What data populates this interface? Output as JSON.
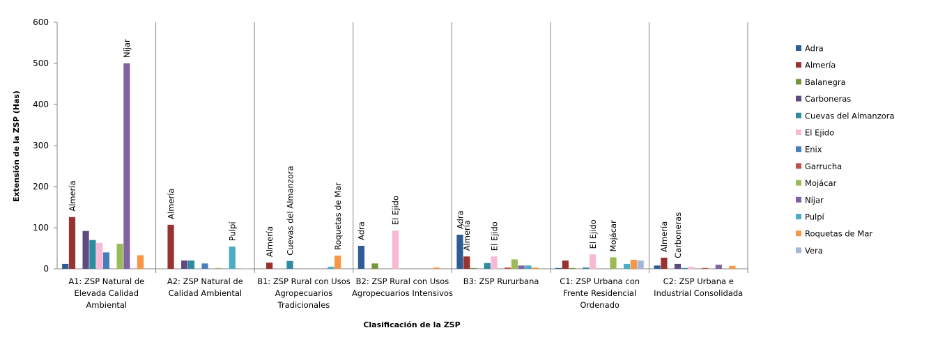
{
  "chart_data": {
    "type": "bar",
    "title": "",
    "xlabel": "Clasificación  de la ZSP",
    "ylabel": "Extensión de la ZSP (Has)",
    "ylim": [
      0,
      600
    ],
    "yticks": [
      0,
      100,
      200,
      300,
      400,
      500,
      600
    ],
    "grid": false,
    "legend_position": "right",
    "categories": [
      [
        "A1: ZSP Natural de",
        "Elevada Calidad",
        "Ambiental"
      ],
      [
        "A2: ZSP Natural de",
        "Calidad Ambiental"
      ],
      [
        "B1: ZSP Rural con Usos",
        "Agropecuarios",
        "Tradicionales"
      ],
      [
        "B2: ZSP Rural con Usos",
        "Agropecuarios Intensivos"
      ],
      [
        "B3: ZSP Rururbana"
      ],
      [
        "C1: ZSP Urbana con",
        "Frente  Residencial",
        "Ordenado"
      ],
      [
        "C2: ZSP Urbana e",
        "Industrial Consolidada"
      ]
    ],
    "series": [
      {
        "name": "Adra",
        "color": "#2e5d96",
        "values": [
          12,
          0,
          0,
          56,
          83,
          2,
          8
        ]
      },
      {
        "name": "Almería",
        "color": "#983330",
        "values": [
          126,
          107,
          15,
          0,
          30,
          20,
          27
        ]
      },
      {
        "name": "Balanegra",
        "color": "#77943c",
        "values": [
          0,
          0,
          0,
          13,
          2,
          2,
          0
        ]
      },
      {
        "name": "Carboneras",
        "color": "#5f4a80",
        "values": [
          92,
          20,
          0,
          0,
          0,
          0,
          12
        ]
      },
      {
        "name": "Cuevas del Almanzora",
        "color": "#2e8a9e",
        "values": [
          70,
          20,
          19,
          0,
          14,
          3,
          2
        ]
      },
      {
        "name": "El Ejido",
        "color": "#f9b9d4",
        "values": [
          63,
          0,
          0,
          93,
          30,
          35,
          5
        ]
      },
      {
        "name": "Enix",
        "color": "#4a7ebb",
        "values": [
          40,
          13,
          0,
          0,
          0,
          0,
          0
        ]
      },
      {
        "name": "Garrucha",
        "color": "#c0504d",
        "values": [
          0,
          0,
          0,
          0,
          3,
          0,
          2
        ]
      },
      {
        "name": "Mojácar",
        "color": "#9bbb59",
        "values": [
          61,
          2,
          0,
          0,
          23,
          28,
          0
        ]
      },
      {
        "name": "Níjar",
        "color": "#8064a2",
        "values": [
          500,
          0,
          0,
          0,
          8,
          0,
          10
        ]
      },
      {
        "name": "Pulpí",
        "color": "#4bacc6",
        "values": [
          0,
          54,
          5,
          0,
          8,
          12,
          0
        ]
      },
      {
        "name": "Roquetas de Mar",
        "color": "#f79646",
        "values": [
          33,
          0,
          32,
          3,
          3,
          22,
          7
        ]
      },
      {
        "name": "Vera",
        "color": "#a5b6d8",
        "values": [
          0,
          1,
          0,
          0,
          0,
          20,
          0
        ]
      }
    ],
    "data_labels": [
      {
        "category": 0,
        "series": 1,
        "text": "Almería"
      },
      {
        "category": 0,
        "series": 9,
        "text": "Níjar"
      },
      {
        "category": 1,
        "series": 1,
        "text": "Almería"
      },
      {
        "category": 1,
        "series": 10,
        "text": "Pulpí"
      },
      {
        "category": 2,
        "series": 1,
        "text": "Almería"
      },
      {
        "category": 2,
        "series": 4,
        "text": "Cuevas del Almanzora"
      },
      {
        "category": 2,
        "series": 11,
        "text": "Roquetas de Mar"
      },
      {
        "category": 3,
        "series": 0,
        "text": "Adra"
      },
      {
        "category": 3,
        "series": 5,
        "text": "El Ejido"
      },
      {
        "category": 4,
        "series": 0,
        "text": "Adra"
      },
      {
        "category": 4,
        "series": 1,
        "text": "Almería"
      },
      {
        "category": 4,
        "series": 5,
        "text": "El Ejido"
      },
      {
        "category": 5,
        "series": 5,
        "text": "El Ejido"
      },
      {
        "category": 5,
        "series": 8,
        "text": "Mojácar"
      },
      {
        "category": 6,
        "series": 1,
        "text": "Almería"
      },
      {
        "category": 6,
        "series": 3,
        "text": "Carboneras"
      }
    ]
  }
}
